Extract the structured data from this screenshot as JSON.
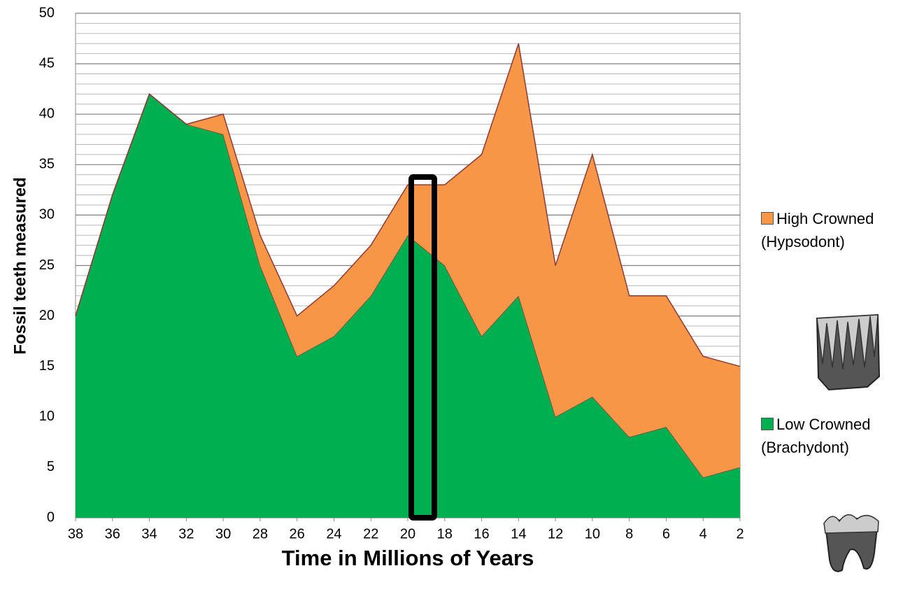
{
  "chart_data": {
    "type": "stacked-area",
    "x_label": "Time in Millions of Years",
    "y_label": "Fossil teeth measured",
    "x": [
      38,
      36,
      34,
      32,
      30,
      28,
      26,
      24,
      22,
      20,
      18,
      16,
      14,
      12,
      10,
      8,
      6,
      4,
      2
    ],
    "series": [
      {
        "name": "Low Crowned (Brachydont)",
        "color": "#00b050",
        "values": [
          20,
          32,
          42,
          39,
          38,
          25,
          16,
          18,
          22,
          28,
          25,
          18,
          22,
          10,
          12,
          8,
          9,
          4,
          5
        ]
      },
      {
        "name": "High Crowned (Hypsodont)",
        "color": "#f79646",
        "values": [
          0,
          0,
          0,
          0,
          2,
          3,
          4,
          5,
          5,
          5,
          8,
          18,
          25,
          15,
          24,
          14,
          13,
          12,
          10
        ]
      }
    ],
    "xlim": [
      38,
      2
    ],
    "xticks": [
      38,
      36,
      34,
      32,
      30,
      28,
      26,
      24,
      22,
      20,
      18,
      16,
      14,
      12,
      10,
      8,
      6,
      4,
      2
    ],
    "ylim": [
      0,
      50
    ],
    "yticks": [
      0,
      5,
      10,
      15,
      20,
      25,
      30,
      35,
      40,
      45,
      50
    ],
    "grid": true,
    "minor_grid": true,
    "legend": "right"
  }
}
